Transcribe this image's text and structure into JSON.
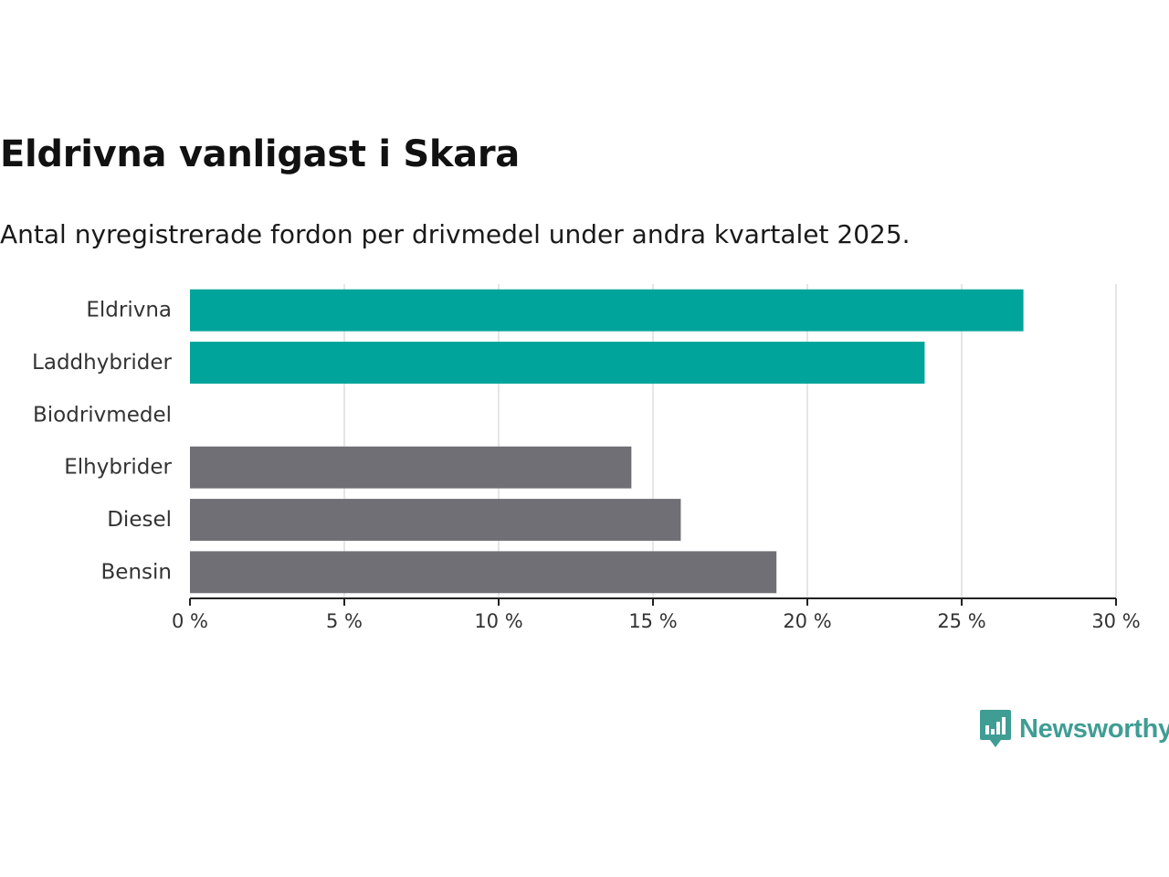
{
  "chart_data": {
    "type": "bar",
    "orientation": "horizontal",
    "title": "Eldrivna vanligast i Skara",
    "subtitle": "Antal nyregistrerade fordon per drivmedel under andra kvartalet 2025.",
    "categories": [
      "Eldrivna",
      "Laddhybrider",
      "Biodrivmedel",
      "Elhybrider",
      "Diesel",
      "Bensin"
    ],
    "values": [
      27.0,
      23.8,
      0,
      14.3,
      15.9,
      19.0
    ],
    "bar_colors": [
      "#00a49a",
      "#00a49a",
      "#00a49a",
      "#706f75",
      "#706f75",
      "#706f75"
    ],
    "xlim": [
      0,
      30
    ],
    "x_ticks": [
      0,
      5,
      10,
      15,
      20,
      25,
      30
    ],
    "x_tick_labels": [
      "0 %",
      "5 %",
      "10 %",
      "15 %",
      "20 %",
      "25 %",
      "30 %"
    ],
    "xlabel": "",
    "ylabel": "",
    "grid": true
  },
  "brand": {
    "name": "Newsworthy",
    "icon": "newsworthy-logo-icon",
    "color": "#3f9d94"
  }
}
